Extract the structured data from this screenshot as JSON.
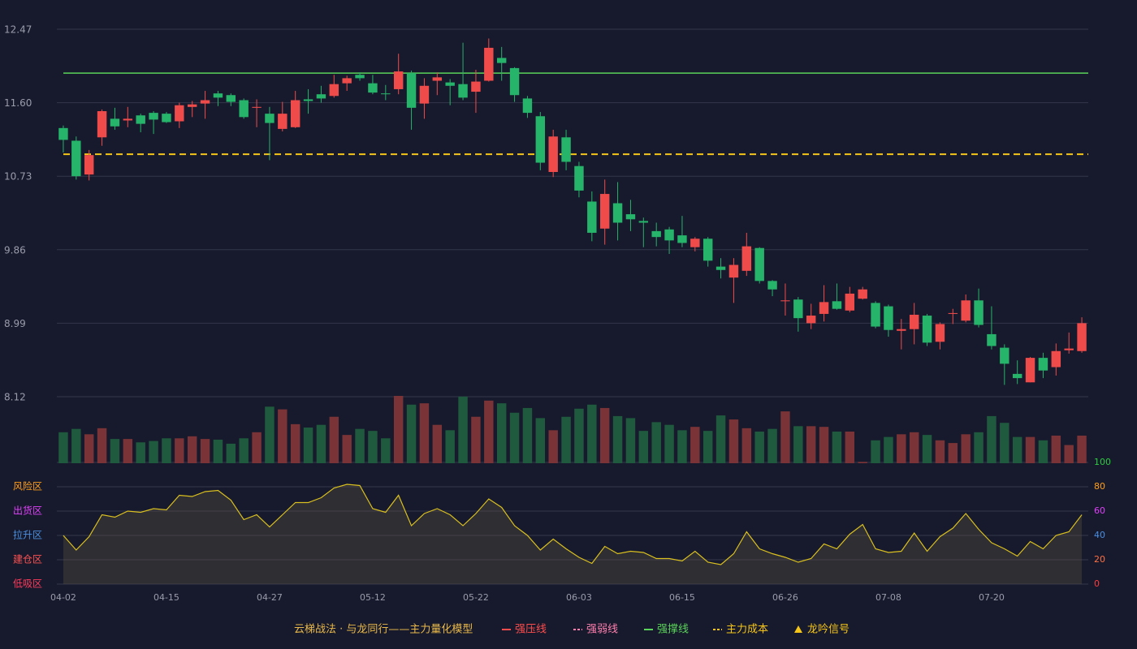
{
  "chart_data": [
    {
      "type": "candlestick",
      "categories": [
        "04-02",
        null,
        null,
        null,
        null,
        null,
        null,
        null,
        "04-15",
        null,
        null,
        null,
        null,
        null,
        null,
        null,
        "04-27",
        null,
        null,
        null,
        null,
        null,
        null,
        null,
        "05-12",
        null,
        null,
        null,
        null,
        null,
        null,
        null,
        "05-22",
        null,
        null,
        null,
        null,
        null,
        null,
        null,
        "06-03",
        null,
        null,
        null,
        null,
        null,
        null,
        null,
        "06-15",
        null,
        null,
        null,
        null,
        null,
        null,
        null,
        "06-26",
        null,
        null,
        null,
        null,
        null,
        null,
        null,
        "07-08",
        null,
        null,
        null,
        null,
        null,
        null,
        null,
        "07-20",
        null,
        null,
        null,
        null,
        null,
        null,
        null
      ],
      "open": [
        11.3,
        11.15,
        10.75,
        11.19,
        11.41,
        11.39,
        11.45,
        11.48,
        11.47,
        11.38,
        11.55,
        11.59,
        11.71,
        11.69,
        11.63,
        11.54,
        11.47,
        11.29,
        11.31,
        11.64,
        11.7,
        11.68,
        11.83,
        11.93,
        11.83,
        11.71,
        11.76,
        11.95,
        11.59,
        11.86,
        11.84,
        11.82,
        11.73,
        11.86,
        12.13,
        12.01,
        11.65,
        11.44,
        10.78,
        11.19,
        10.85,
        10.43,
        10.11,
        10.41,
        10.28,
        10.2,
        10.08,
        10.1,
        10.03,
        9.89,
        9.99,
        9.66,
        9.53,
        9.61,
        9.88,
        9.49,
        9.25,
        9.27,
        8.99,
        9.1,
        9.25,
        9.14,
        9.28,
        9.23,
        9.19,
        8.9,
        8.92,
        9.08,
        8.77,
        9.1,
        9.02,
        9.26,
        8.86,
        8.7,
        8.39,
        8.29,
        8.58,
        8.47,
        8.67,
        8.66
      ],
      "close": [
        11.16,
        10.73,
        10.98,
        11.5,
        11.32,
        11.41,
        11.35,
        11.4,
        11.37,
        11.57,
        11.58,
        11.63,
        11.66,
        11.61,
        11.43,
        11.55,
        11.36,
        11.47,
        11.63,
        11.62,
        11.65,
        11.82,
        11.89,
        11.89,
        11.72,
        11.7,
        11.97,
        11.54,
        11.8,
        11.9,
        11.8,
        11.66,
        11.85,
        12.25,
        12.07,
        11.69,
        11.48,
        10.89,
        11.2,
        10.9,
        10.56,
        10.06,
        10.52,
        10.18,
        10.22,
        10.18,
        10.01,
        9.97,
        9.94,
        9.99,
        9.73,
        9.62,
        9.68,
        9.9,
        9.49,
        9.39,
        9.26,
        9.05,
        9.08,
        9.24,
        9.16,
        9.34,
        9.39,
        8.95,
        8.91,
        8.92,
        9.09,
        8.76,
        8.98,
        9.11,
        9.26,
        8.97,
        8.72,
        8.51,
        8.34,
        8.58,
        8.43,
        8.66,
        8.69,
        8.99
      ],
      "high": [
        11.33,
        11.2,
        11.04,
        11.52,
        11.54,
        11.55,
        11.47,
        11.5,
        11.49,
        11.6,
        11.62,
        11.74,
        11.74,
        11.71,
        11.65,
        11.64,
        11.55,
        11.61,
        11.74,
        11.76,
        11.8,
        11.93,
        11.92,
        11.96,
        11.93,
        11.81,
        12.18,
        11.98,
        11.89,
        11.96,
        11.88,
        12.31,
        11.99,
        12.36,
        12.26,
        12.02,
        11.68,
        11.49,
        11.28,
        11.28,
        10.9,
        10.55,
        10.69,
        10.66,
        10.45,
        10.24,
        10.18,
        10.13,
        10.26,
        10.01,
        10.01,
        9.76,
        9.76,
        10.06,
        9.89,
        9.5,
        9.46,
        9.3,
        9.22,
        9.44,
        9.46,
        9.42,
        9.42,
        9.25,
        9.21,
        9.04,
        9.23,
        9.1,
        9.0,
        9.16,
        9.33,
        9.4,
        9.19,
        8.74,
        8.55,
        8.59,
        8.64,
        8.75,
        8.88,
        9.06
      ],
      "low": [
        11.01,
        10.69,
        10.68,
        11.09,
        11.28,
        11.31,
        11.25,
        11.23,
        11.36,
        11.3,
        11.43,
        11.41,
        11.56,
        11.56,
        11.41,
        11.31,
        10.92,
        11.26,
        11.3,
        11.47,
        11.6,
        11.66,
        11.74,
        11.86,
        11.7,
        11.63,
        11.7,
        11.28,
        11.41,
        11.69,
        11.57,
        11.63,
        11.48,
        11.85,
        11.86,
        11.61,
        11.42,
        10.8,
        10.72,
        10.8,
        10.48,
        9.96,
        9.92,
        9.97,
        10.08,
        9.89,
        9.9,
        9.81,
        9.89,
        9.84,
        9.66,
        9.52,
        9.23,
        9.55,
        9.46,
        9.31,
        9.08,
        8.89,
        8.92,
        9.01,
        9.15,
        9.12,
        9.27,
        8.93,
        8.83,
        8.68,
        8.74,
        8.72,
        8.68,
        8.98,
        9.0,
        8.94,
        8.68,
        8.26,
        8.27,
        8.29,
        8.34,
        8.37,
        8.63,
        8.64
      ],
      "ylim": [
        8.12,
        12.47
      ],
      "yticks": [
        8.12,
        8.99,
        9.86,
        10.73,
        {
          "value": 11.6,
          "label": "11.60"
        },
        12.47
      ],
      "grid": true,
      "up_color": "#ef4b4b",
      "down_color": "#26b36a"
    },
    {
      "type": "bar",
      "values": [
        46,
        51,
        43,
        52,
        36,
        36,
        31,
        33,
        37,
        37,
        40,
        36,
        35,
        29,
        37,
        46,
        84,
        80,
        58,
        53,
        57,
        69,
        42,
        51,
        48,
        37,
        100,
        87,
        89,
        57,
        49,
        99,
        69,
        93,
        89,
        75,
        82,
        67,
        49,
        69,
        81,
        87,
        82,
        70,
        67,
        48,
        61,
        57,
        49,
        54,
        48,
        71,
        65,
        52,
        47,
        51,
        77,
        55,
        55,
        54,
        47,
        47,
        2,
        34,
        39,
        43,
        46,
        42,
        34,
        30,
        43,
        46,
        70,
        60,
        39,
        39,
        34,
        41,
        27,
        41
      ],
      "ylim": [
        0,
        100
      ],
      "up_color": "#7a3336",
      "down_color": "#1f5a3e"
    },
    {
      "type": "area",
      "values": [
        40,
        28,
        39,
        57,
        55,
        60,
        59,
        62,
        61,
        73,
        72,
        76,
        77,
        69,
        53,
        57,
        47,
        57,
        67,
        67,
        71,
        79,
        82,
        81,
        62,
        59,
        73,
        48,
        58,
        62,
        57,
        48,
        58,
        70,
        63,
        48,
        40,
        28,
        37,
        29,
        22,
        17,
        31,
        25,
        27,
        26,
        21,
        21,
        19,
        27,
        18,
        16,
        25,
        43,
        29,
        25,
        22,
        18,
        21,
        33,
        29,
        41,
        49,
        29,
        26,
        27,
        42,
        27,
        39,
        46,
        58,
        45,
        34,
        29,
        23,
        35,
        29,
        40,
        43,
        57
      ],
      "ylim": [
        0,
        100
      ],
      "yticks": [
        0,
        20,
        40,
        60,
        80,
        100
      ],
      "ytick_colors": [
        "#ff3b3b",
        "#ff7043",
        "#4a90e2",
        "#e040fb",
        "#ff9f1a",
        "#2ecc40"
      ],
      "zones": [
        {
          "label": "风险区",
          "value": 80,
          "color": "#ff9f1a"
        },
        {
          "label": "出货区",
          "value": 60,
          "color": "#e040fb"
        },
        {
          "label": "拉升区",
          "value": 40,
          "color": "#4a90e2"
        },
        {
          "label": "建仓区",
          "value": 20,
          "color": "#ff5252"
        },
        {
          "label": "低吸区",
          "value": 0,
          "color": "#ff3b5c"
        }
      ],
      "grid": true,
      "color": "#d9bf1f"
    }
  ],
  "legend": {
    "title": "云梯战法 · 与龙同行——主力量化模型",
    "title_color": "#e8b84a",
    "items": [
      {
        "name": "强压线",
        "color": "#ff4d4d",
        "style": "solid"
      },
      {
        "name": "强弱线",
        "color": "#ff7fae",
        "style": "dashed"
      },
      {
        "name": "强撑线",
        "color": "#5ad35a",
        "style": "solid",
        "value": 11.95
      },
      {
        "name": "主力成本",
        "color": "#f5c518",
        "style": "dashed",
        "value": 10.99
      },
      {
        "name": "龙吟信号",
        "color": "#f5c518",
        "style": "triangle"
      }
    ]
  }
}
